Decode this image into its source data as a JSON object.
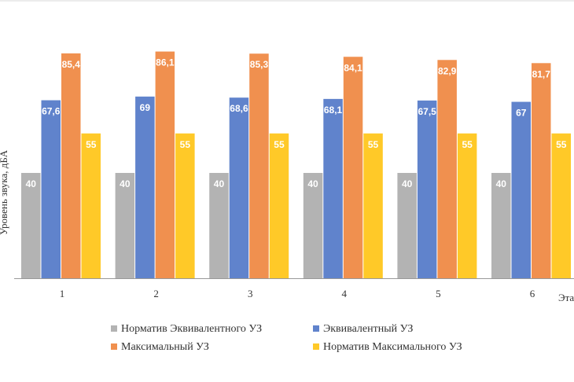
{
  "chart_data": {
    "type": "bar",
    "categories": [
      "1",
      "2",
      "3",
      "4",
      "5",
      "6"
    ],
    "series": [
      {
        "name": "Норматив Эквивалентного УЗ",
        "values": [
          40,
          40,
          40,
          40,
          40,
          40
        ],
        "color": "#b3b3b3"
      },
      {
        "name": "Эквивалентный УЗ",
        "values": [
          67.6,
          69,
          68.6,
          68.1,
          67.5,
          67
        ],
        "labels": [
          "67,6",
          "69",
          "68,6",
          "68,1",
          "67,5",
          "67"
        ],
        "color": "#6083cc"
      },
      {
        "name": "Максимальный УЗ",
        "values": [
          85.4,
          86.1,
          85.3,
          84.1,
          82.9,
          81.7
        ],
        "labels": [
          "85,4",
          "86,1",
          "85,3",
          "84,1",
          "82,9",
          "81,7"
        ],
        "color": "#f0904f"
      },
      {
        "name": "Норматив Максимального УЗ",
        "values": [
          55,
          55,
          55,
          55,
          55,
          55
        ],
        "labels": [
          "55",
          "55",
          "55",
          "55",
          "55",
          "55"
        ],
        "color": "#ffc928"
      }
    ],
    "ylabel": "Уровень звука, дБА",
    "xlabel": "Эта",
    "ylim": [
      0,
      90
    ],
    "legend_position": "bottom"
  }
}
